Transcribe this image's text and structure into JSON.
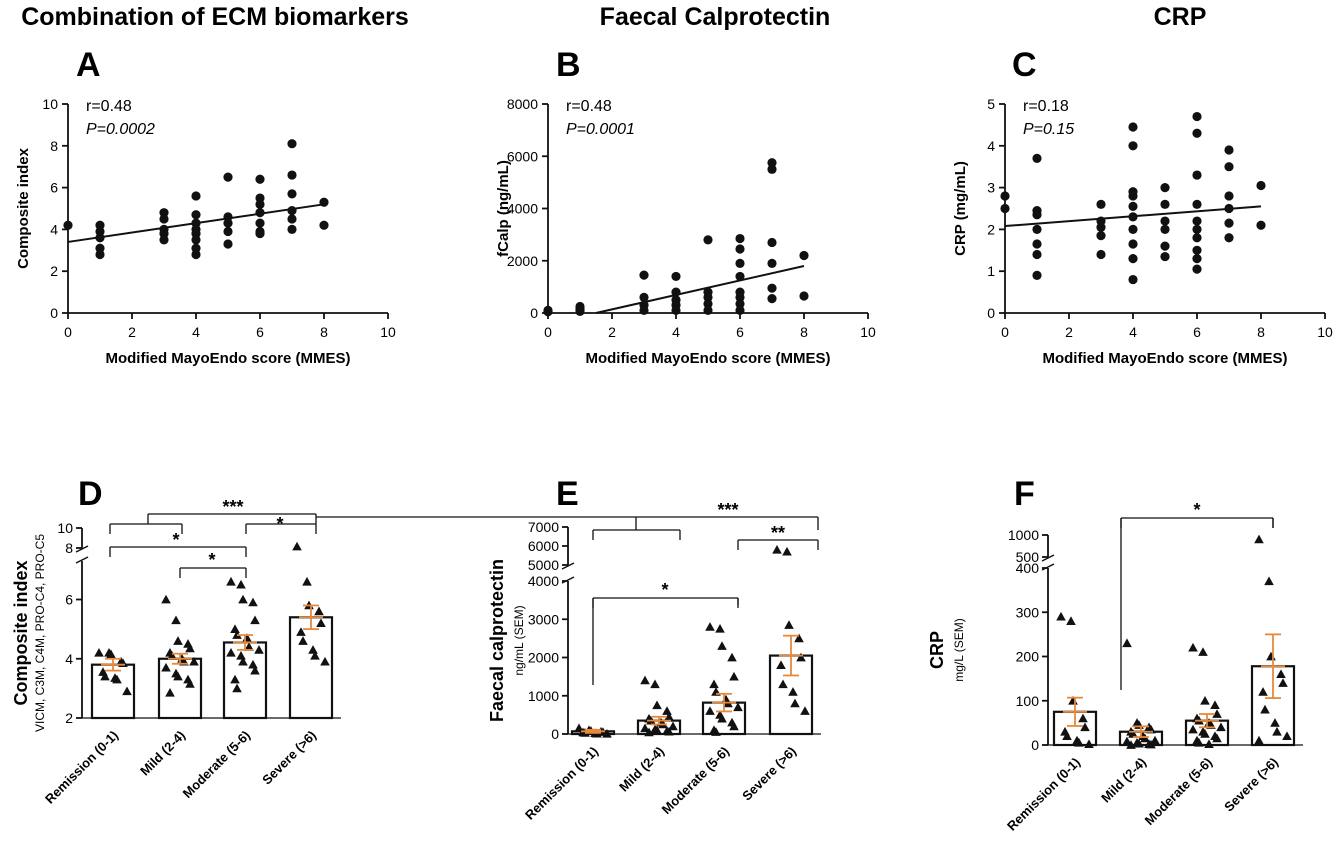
{
  "chart_data": [
    {
      "panel": "A",
      "type": "scatter",
      "title": "Combination of ECM biomarkers",
      "xlabel": "Modified MayoEndo score (MMES)",
      "ylabel": "Composite index",
      "xlim": [
        0,
        10
      ],
      "ylim": [
        0,
        10
      ],
      "xticks": [
        "0",
        "2",
        "4",
        "6",
        "8",
        "10"
      ],
      "yticks": [
        "0",
        "2",
        "4",
        "6",
        "8",
        "10"
      ],
      "r": "r=0.48",
      "p": "P=0.0002",
      "points": [
        [
          0,
          4.2
        ],
        [
          1,
          4.2
        ],
        [
          1,
          3.9
        ],
        [
          1,
          3.6
        ],
        [
          1,
          3.1
        ],
        [
          1,
          2.8
        ],
        [
          3,
          4.8
        ],
        [
          3,
          4.5
        ],
        [
          3,
          4.0
        ],
        [
          3,
          3.8
        ],
        [
          3,
          3.5
        ],
        [
          4,
          5.6
        ],
        [
          4,
          4.7
        ],
        [
          4,
          4.3
        ],
        [
          4,
          4.0
        ],
        [
          4,
          3.8
        ],
        [
          4,
          3.5
        ],
        [
          4,
          3.1
        ],
        [
          4,
          2.8
        ],
        [
          5,
          6.5
        ],
        [
          5,
          4.6
        ],
        [
          5,
          4.3
        ],
        [
          5,
          3.9
        ],
        [
          5,
          3.3
        ],
        [
          6,
          6.4
        ],
        [
          6,
          5.5
        ],
        [
          6,
          5.2
        ],
        [
          6,
          4.8
        ],
        [
          6,
          4.3
        ],
        [
          6,
          3.9
        ],
        [
          6,
          3.8
        ],
        [
          7,
          8.1
        ],
        [
          7,
          6.6
        ],
        [
          7,
          5.7
        ],
        [
          7,
          4.9
        ],
        [
          7,
          4.5
        ],
        [
          7,
          4.0
        ],
        [
          8,
          5.3
        ],
        [
          8,
          4.2
        ]
      ],
      "trend": [
        [
          0,
          3.4
        ],
        [
          8,
          5.2
        ]
      ]
    },
    {
      "panel": "B",
      "type": "scatter",
      "title": "Faecal Calprotectin",
      "xlabel": "Modified MayoEndo score (MMES)",
      "ylabel": "fCalp (ng/mL)",
      "xlim": [
        0,
        10
      ],
      "ylim": [
        0,
        8000
      ],
      "xticks": [
        "0",
        "2",
        "4",
        "6",
        "8",
        "10"
      ],
      "yticks": [
        "0",
        "2000",
        "4000",
        "6000",
        "8000"
      ],
      "r": "r=0.48",
      "p": "P=0.0001",
      "points": [
        [
          0,
          100
        ],
        [
          0,
          50
        ],
        [
          1,
          250
        ],
        [
          1,
          150
        ],
        [
          1,
          60
        ],
        [
          3,
          1450
        ],
        [
          3,
          600
        ],
        [
          3,
          300
        ],
        [
          3,
          100
        ],
        [
          4,
          1400
        ],
        [
          4,
          800
        ],
        [
          4,
          500
        ],
        [
          4,
          300
        ],
        [
          4,
          100
        ],
        [
          5,
          2800
        ],
        [
          5,
          800
        ],
        [
          5,
          600
        ],
        [
          5,
          350
        ],
        [
          5,
          100
        ],
        [
          6,
          2850
        ],
        [
          6,
          2450
        ],
        [
          6,
          1900
        ],
        [
          6,
          1400
        ],
        [
          6,
          800
        ],
        [
          6,
          600
        ],
        [
          6,
          350
        ],
        [
          6,
          100
        ],
        [
          7,
          5750
        ],
        [
          7,
          5500
        ],
        [
          7,
          2700
        ],
        [
          7,
          1900
        ],
        [
          7,
          950
        ],
        [
          7,
          550
        ],
        [
          8,
          2200
        ],
        [
          8,
          650
        ]
      ],
      "trend": [
        [
          1.5,
          0
        ],
        [
          8,
          1800
        ]
      ]
    },
    {
      "panel": "C",
      "type": "scatter",
      "title": "CRP",
      "xlabel": "Modified MayoEndo score (MMES)",
      "ylabel": "CRP (mg/mL)",
      "xlim": [
        0,
        10
      ],
      "ylim": [
        0,
        5
      ],
      "xticks": [
        "0",
        "2",
        "4",
        "6",
        "8",
        "10"
      ],
      "yticks": [
        "0",
        "1",
        "2",
        "3",
        "4",
        "5"
      ],
      "r": "r=0.18",
      "p": "P=0.15",
      "points": [
        [
          0,
          2.8
        ],
        [
          0,
          2.5
        ],
        [
          1,
          3.7
        ],
        [
          1,
          2.45
        ],
        [
          1,
          2.35
        ],
        [
          1,
          2.0
        ],
        [
          1,
          1.65
        ],
        [
          1,
          1.4
        ],
        [
          1,
          0.9
        ],
        [
          3,
          2.6
        ],
        [
          3,
          2.2
        ],
        [
          3,
          2.05
        ],
        [
          3,
          1.85
        ],
        [
          3,
          1.4
        ],
        [
          4,
          4.45
        ],
        [
          4,
          4.0
        ],
        [
          4,
          2.9
        ],
        [
          4,
          2.8
        ],
        [
          4,
          2.55
        ],
        [
          4,
          2.3
        ],
        [
          4,
          2.0
        ],
        [
          4,
          1.65
        ],
        [
          4,
          1.3
        ],
        [
          4,
          0.8
        ],
        [
          5,
          3.0
        ],
        [
          5,
          2.6
        ],
        [
          5,
          2.2
        ],
        [
          5,
          2.0
        ],
        [
          5,
          1.6
        ],
        [
          5,
          1.35
        ],
        [
          6,
          4.7
        ],
        [
          6,
          4.3
        ],
        [
          6,
          3.3
        ],
        [
          6,
          2.6
        ],
        [
          6,
          2.2
        ],
        [
          6,
          2.0
        ],
        [
          6,
          1.8
        ],
        [
          6,
          1.5
        ],
        [
          6,
          1.3
        ],
        [
          6,
          1.05
        ],
        [
          7,
          3.9
        ],
        [
          7,
          3.5
        ],
        [
          7,
          2.8
        ],
        [
          7,
          2.5
        ],
        [
          7,
          2.15
        ],
        [
          7,
          1.8
        ],
        [
          8,
          3.05
        ],
        [
          8,
          2.1
        ]
      ],
      "trend": [
        [
          0,
          2.08
        ],
        [
          8,
          2.55
        ]
      ]
    },
    {
      "panel": "D",
      "type": "bar",
      "ylabel": "Composite index",
      "ysub": "VICM, C3M, C4M, PRO-C4, PRO-C5",
      "categories": [
        "Remission (0-1)",
        "Mild (2-4)",
        "Moderate (5-6)",
        "Severe (>6)"
      ],
      "values": [
        3.8,
        4.0,
        4.55,
        5.4
      ],
      "sem": [
        0.2,
        0.17,
        0.25,
        0.4
      ],
      "yticks": [
        "2",
        "4",
        "6",
        "8",
        "10"
      ],
      "ylim": [
        2,
        10
      ],
      "axis_break": [
        7.3,
        8
      ],
      "points": [
        [
          4.2,
          4.2,
          4.15,
          3.9,
          3.85,
          3.55,
          3.4,
          3.35,
          3.3,
          2.9
        ],
        [
          6.0,
          5.3,
          4.6,
          4.5,
          4.35,
          4.2,
          4.1,
          4.0,
          3.9,
          3.9,
          3.7,
          3.5,
          3.4,
          3.3,
          3.15,
          2.85
        ],
        [
          6.6,
          6.5,
          6.0,
          5.9,
          5.3,
          5.0,
          4.8,
          4.7,
          4.4,
          4.3,
          4.2,
          4.1,
          3.9,
          3.8,
          3.6,
          3.3,
          3.0
        ],
        [
          8.15,
          6.6,
          5.8,
          5.6,
          5.2,
          4.9,
          4.6,
          4.3,
          4.1,
          3.9
        ]
      ],
      "significance": [
        "***",
        "*",
        "*",
        "*"
      ]
    },
    {
      "panel": "E",
      "type": "bar",
      "ylabel": "Faecal calprotectin",
      "ysub": "ng/mL (SEM)",
      "categories": [
        "Remission (0-1)",
        "Mild (2-4)",
        "Moderate (5-6)",
        "Severe (>6)"
      ],
      "values": [
        70,
        350,
        820,
        2050
      ],
      "sem": [
        40,
        100,
        230,
        520
      ],
      "yticks": [
        "0",
        "1000",
        "2000",
        "3000",
        "4000",
        "5000",
        "6000",
        "7000"
      ],
      "ylim": [
        0,
        7000
      ],
      "axis_break": [
        4000,
        5000
      ],
      "points": [
        [
          150,
          100,
          80,
          60,
          50,
          40,
          30,
          20,
          10,
          5
        ],
        [
          1400,
          1300,
          750,
          600,
          450,
          400,
          350,
          300,
          250,
          200,
          150,
          120,
          100,
          80,
          60,
          40
        ],
        [
          2800,
          2750,
          2300,
          2000,
          1500,
          1300,
          1100,
          900,
          800,
          700,
          600,
          500,
          400,
          300,
          200,
          100,
          50
        ],
        [
          5800,
          5700,
          2850,
          2500,
          2000,
          1800,
          1300,
          1100,
          800,
          600
        ]
      ],
      "significance": [
        "***",
        "**",
        "*"
      ]
    },
    {
      "panel": "F",
      "type": "bar",
      "ylabel": "CRP",
      "ysub": "mg/L (SEM)",
      "categories": [
        "Remission (0-1)",
        "Mild (2-4)",
        "Moderate (5-6)",
        "Severe (>6)"
      ],
      "values": [
        75,
        30,
        55,
        178
      ],
      "sem": [
        32,
        12,
        15,
        72
      ],
      "yticks": [
        "0",
        "100",
        "200",
        "300",
        "400",
        "500",
        "1000"
      ],
      "ylim": [
        0,
        1000
      ],
      "axis_break": [
        400,
        500
      ],
      "points": [
        [
          290,
          280,
          100,
          60,
          40,
          30,
          20,
          10,
          5,
          2
        ],
        [
          230,
          50,
          45,
          40,
          35,
          30,
          25,
          20,
          15,
          10,
          8,
          5,
          3,
          2,
          1,
          0
        ],
        [
          220,
          210,
          100,
          90,
          70,
          60,
          55,
          50,
          45,
          40,
          35,
          30,
          25,
          20,
          15,
          10,
          5,
          2
        ],
        [
          900,
          370,
          200,
          160,
          140,
          120,
          80,
          50,
          30,
          20,
          10
        ]
      ],
      "significance": [
        "*"
      ]
    }
  ],
  "panel_titles": {
    "A": "Combination of ECM biomarkers",
    "B": "Faecal Calprotectin",
    "C": "CRP"
  },
  "panel_letters": [
    "A",
    "B",
    "C",
    "D",
    "E",
    "F"
  ],
  "colors": {
    "marker": "#111111",
    "error": "#e8893a",
    "axis": "#111111"
  }
}
